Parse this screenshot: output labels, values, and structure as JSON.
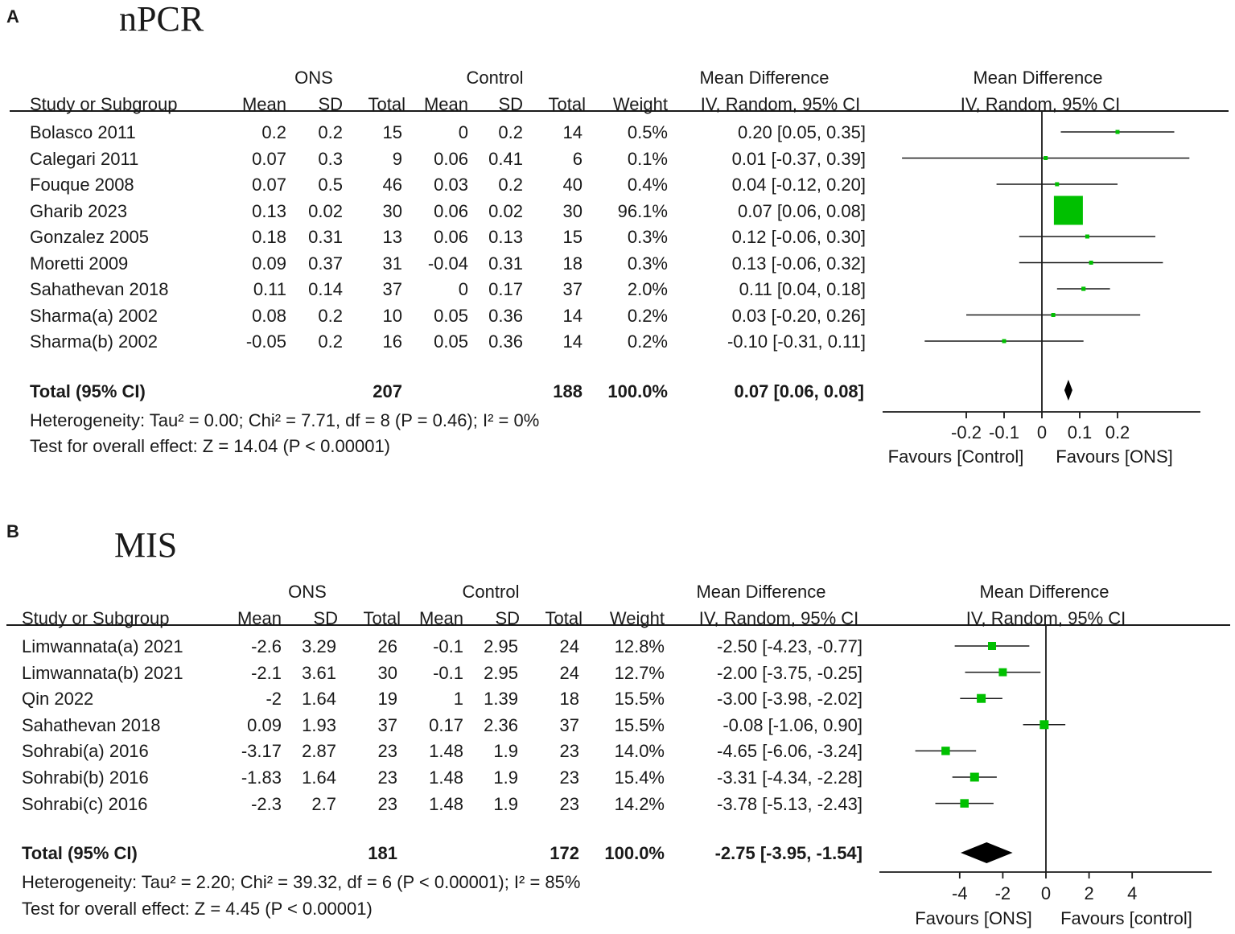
{
  "colors": {
    "marker": "#00c000",
    "line": "#1a1a1a",
    "diamond": "#000000"
  },
  "chart_data": [
    {
      "type": "forest",
      "panel": "A",
      "title": "nPCR",
      "group_labels": {
        "experimental": "ONS",
        "control": "Control"
      },
      "headers": {
        "study": "Study or Subgroup",
        "mean": "Mean",
        "sd": "SD",
        "total": "Total",
        "weight": "Weight",
        "md_title": "Mean Difference",
        "md_method": "IV, Random, 95% CI"
      },
      "studies": [
        {
          "name": "Bolasco 2011",
          "m1": "0.2",
          "sd1": "0.2",
          "n1": "15",
          "m2": "0",
          "sd2": "0.2",
          "n2": "14",
          "weight": "0.5%",
          "ci": "0.20 [0.05, 0.35]",
          "est": 0.2,
          "lo": 0.05,
          "hi": 0.35,
          "w": 0.5
        },
        {
          "name": "Calegari 2011",
          "m1": "0.07",
          "sd1": "0.3",
          "n1": "9",
          "m2": "0.06",
          "sd2": "0.41",
          "n2": "6",
          "weight": "0.1%",
          "ci": "0.01 [-0.37, 0.39]",
          "est": 0.01,
          "lo": -0.37,
          "hi": 0.39,
          "w": 0.1
        },
        {
          "name": "Fouque 2008",
          "m1": "0.07",
          "sd1": "0.5",
          "n1": "46",
          "m2": "0.03",
          "sd2": "0.2",
          "n2": "40",
          "weight": "0.4%",
          "ci": "0.04 [-0.12, 0.20]",
          "est": 0.04,
          "lo": -0.12,
          "hi": 0.2,
          "w": 0.4
        },
        {
          "name": "Gharib 2023",
          "m1": "0.13",
          "sd1": "0.02",
          "n1": "30",
          "m2": "0.06",
          "sd2": "0.02",
          "n2": "30",
          "weight": "96.1%",
          "ci": "0.07 [0.06, 0.08]",
          "est": 0.07,
          "lo": 0.06,
          "hi": 0.08,
          "w": 96.1
        },
        {
          "name": "Gonzalez 2005",
          "m1": "0.18",
          "sd1": "0.31",
          "n1": "13",
          "m2": "0.06",
          "sd2": "0.13",
          "n2": "15",
          "weight": "0.3%",
          "ci": "0.12 [-0.06, 0.30]",
          "est": 0.12,
          "lo": -0.06,
          "hi": 0.3,
          "w": 0.3
        },
        {
          "name": "Moretti 2009",
          "m1": "0.09",
          "sd1": "0.37",
          "n1": "31",
          "m2": "-0.04",
          "sd2": "0.31",
          "n2": "18",
          "weight": "0.3%",
          "ci": "0.13 [-0.06, 0.32]",
          "est": 0.13,
          "lo": -0.06,
          "hi": 0.32,
          "w": 0.3
        },
        {
          "name": "Sahathevan 2018",
          "m1": "0.11",
          "sd1": "0.14",
          "n1": "37",
          "m2": "0",
          "sd2": "0.17",
          "n2": "37",
          "weight": "2.0%",
          "ci": "0.11 [0.04, 0.18]",
          "est": 0.11,
          "lo": 0.04,
          "hi": 0.18,
          "w": 2.0
        },
        {
          "name": "Sharma(a) 2002",
          "m1": "0.08",
          "sd1": "0.2",
          "n1": "10",
          "m2": "0.05",
          "sd2": "0.36",
          "n2": "14",
          "weight": "0.2%",
          "ci": "0.03 [-0.20, 0.26]",
          "est": 0.03,
          "lo": -0.2,
          "hi": 0.26,
          "w": 0.2
        },
        {
          "name": "Sharma(b) 2002",
          "m1": "-0.05",
          "sd1": "0.2",
          "n1": "16",
          "m2": "0.05",
          "sd2": "0.36",
          "n2": "14",
          "weight": "0.2%",
          "ci": "-0.10 [-0.31, 0.11]",
          "est": -0.1,
          "lo": -0.31,
          "hi": 0.11,
          "w": 0.2
        }
      ],
      "total": {
        "label": "Total (95% CI)",
        "n1": "207",
        "n2": "188",
        "weight": "100.0%",
        "ci": "0.07 [0.06, 0.08]",
        "est": 0.07,
        "lo": 0.06,
        "hi": 0.08
      },
      "heterogeneity": "Heterogeneity: Tau² = 0.00; Chi² = 7.71, df = 8 (P = 0.46); I² = 0%",
      "overall": "Test for overall effect: Z = 14.04 (P < 0.00001)",
      "xlim": [
        -0.42,
        0.42
      ],
      "ticks": [
        -0.2,
        -0.1,
        0,
        0.1,
        0.2
      ],
      "tick_labels": [
        "-0.2",
        "-0.1",
        "0",
        "0.1",
        "0.2"
      ],
      "favours_left": "Favours [Control]",
      "favours_right": "Favours [ONS]"
    },
    {
      "type": "forest",
      "panel": "B",
      "title": "MIS",
      "group_labels": {
        "experimental": "ONS",
        "control": "Control"
      },
      "headers": {
        "study": "Study or Subgroup",
        "mean": "Mean",
        "sd": "SD",
        "total": "Total",
        "weight": "Weight",
        "md_title": "Mean Difference",
        "md_method": "IV, Random, 95% CI"
      },
      "studies": [
        {
          "name": "Limwannata(a) 2021",
          "m1": "-2.6",
          "sd1": "3.29",
          "n1": "26",
          "m2": "-0.1",
          "sd2": "2.95",
          "n2": "24",
          "weight": "12.8%",
          "ci": "-2.50 [-4.23, -0.77]",
          "est": -2.5,
          "lo": -4.23,
          "hi": -0.77,
          "w": 12.8
        },
        {
          "name": "Limwannata(b) 2021",
          "m1": "-2.1",
          "sd1": "3.61",
          "n1": "30",
          "m2": "-0.1",
          "sd2": "2.95",
          "n2": "24",
          "weight": "12.7%",
          "ci": "-2.00 [-3.75, -0.25]",
          "est": -2.0,
          "lo": -3.75,
          "hi": -0.25,
          "w": 12.7
        },
        {
          "name": "Qin 2022",
          "m1": "-2",
          "sd1": "1.64",
          "n1": "19",
          "m2": "1",
          "sd2": "1.39",
          "n2": "18",
          "weight": "15.5%",
          "ci": "-3.00 [-3.98, -2.02]",
          "est": -3.0,
          "lo": -3.98,
          "hi": -2.02,
          "w": 15.5
        },
        {
          "name": "Sahathevan 2018",
          "m1": "0.09",
          "sd1": "1.93",
          "n1": "37",
          "m2": "0.17",
          "sd2": "2.36",
          "n2": "37",
          "weight": "15.5%",
          "ci": "-0.08 [-1.06, 0.90]",
          "est": -0.08,
          "lo": -1.06,
          "hi": 0.9,
          "w": 15.5
        },
        {
          "name": "Sohrabi(a) 2016",
          "m1": "-3.17",
          "sd1": "2.87",
          "n1": "23",
          "m2": "1.48",
          "sd2": "1.9",
          "n2": "23",
          "weight": "14.0%",
          "ci": "-4.65 [-6.06, -3.24]",
          "est": -4.65,
          "lo": -6.06,
          "hi": -3.24,
          "w": 14.0
        },
        {
          "name": "Sohrabi(b) 2016",
          "m1": "-1.83",
          "sd1": "1.64",
          "n1": "23",
          "m2": "1.48",
          "sd2": "1.9",
          "n2": "23",
          "weight": "15.4%",
          "ci": "-3.31 [-4.34, -2.28]",
          "est": -3.31,
          "lo": -4.34,
          "hi": -2.28,
          "w": 15.4
        },
        {
          "name": "Sohrabi(c) 2016",
          "m1": "-2.3",
          "sd1": "2.7",
          "n1": "23",
          "m2": "1.48",
          "sd2": "1.9",
          "n2": "23",
          "weight": "14.2%",
          "ci": "-3.78 [-5.13, -2.43]",
          "est": -3.78,
          "lo": -5.13,
          "hi": -2.43,
          "w": 14.2
        }
      ],
      "total": {
        "label": "Total (95% CI)",
        "n1": "181",
        "n2": "172",
        "weight": "100.0%",
        "ci": "-2.75 [-3.95, -1.54]",
        "est": -2.75,
        "lo": -3.95,
        "hi": -1.54
      },
      "heterogeneity": "Heterogeneity: Tau² = 2.20; Chi² = 39.32, df = 6 (P < 0.00001); I² = 85%",
      "overall": "Test for overall effect: Z = 4.45 (P < 0.00001)",
      "xlim": [
        -7.5,
        7.5
      ],
      "ticks": [
        -4,
        -2,
        0,
        2,
        4
      ],
      "tick_labels": [
        "-4",
        "-2",
        "0",
        "2",
        "4"
      ],
      "favours_left": "Favours [ONS]",
      "favours_right": "Favours [control]"
    }
  ]
}
